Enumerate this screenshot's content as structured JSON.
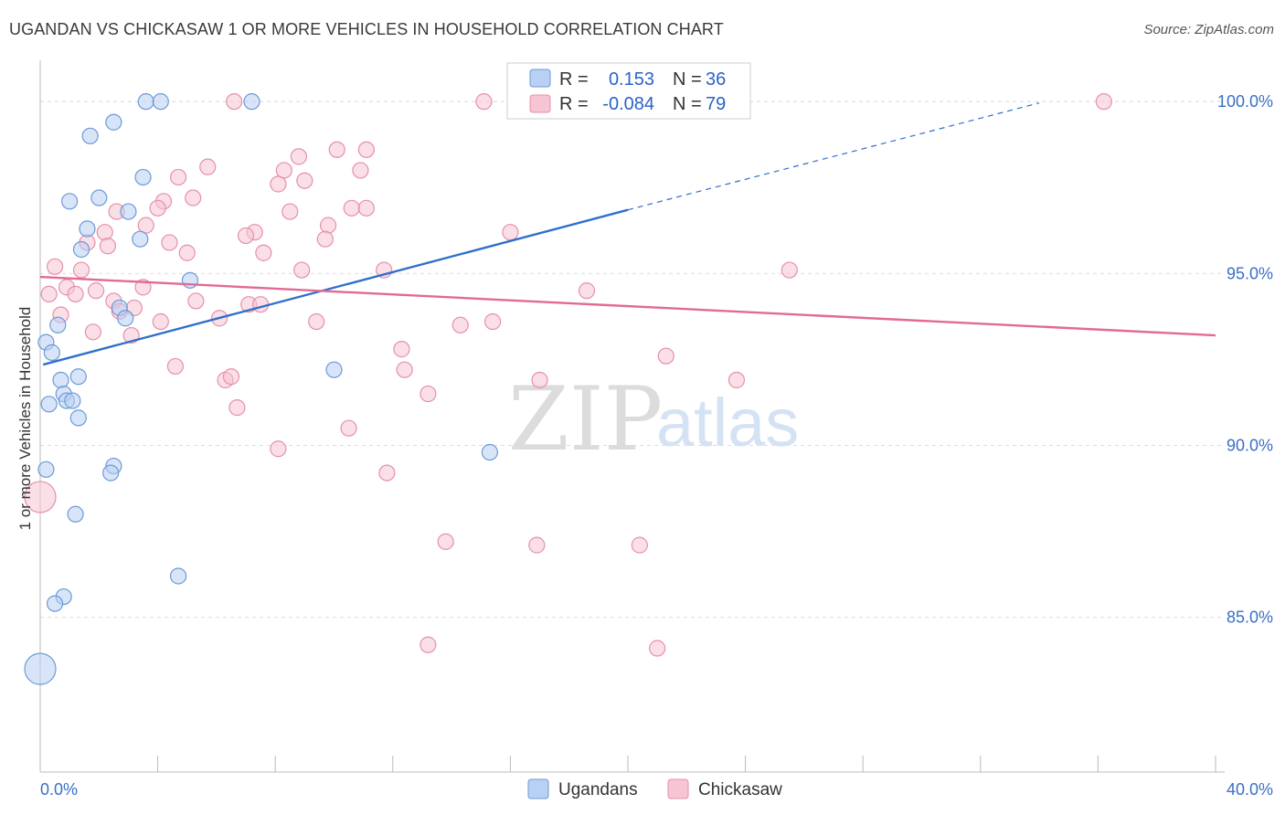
{
  "title": "UGANDAN VS CHICKASAW 1 OR MORE VEHICLES IN HOUSEHOLD CORRELATION CHART",
  "source": "Source: ZipAtlas.com",
  "watermark": {
    "zip": "ZIP",
    "atlas": "atlas"
  },
  "colors": {
    "ugandans_fill": "#b8d0f2",
    "ugandans_stroke": "#6c9ad8",
    "ugandans_line": "#2f6fcc",
    "chickasaw_fill": "#f6c4d3",
    "chickasaw_stroke": "#e590ab",
    "chickasaw_line": "#e26a93",
    "tick_label": "#3a6fc4",
    "grid": "#dddddd"
  },
  "legend": {
    "rows": [
      {
        "r_label": "R =",
        "r_value": "0.153",
        "n_label": "N =",
        "n_value": "36"
      },
      {
        "r_label": "R =",
        "r_value": "-0.084",
        "n_label": "N =",
        "n_value": "79"
      }
    ]
  },
  "chart_data": {
    "type": "scatter",
    "title": "UGANDAN VS CHICKASAW 1 OR MORE VEHICLES IN HOUSEHOLD CORRELATION CHART",
    "xlabel": "",
    "ylabel": "1 or more Vehicles in Household",
    "xlim": [
      0,
      40
    ],
    "ylim": [
      80.5,
      101.2
    ],
    "x_tick_labels": [
      "0.0%",
      "40.0%"
    ],
    "y_ticks": [
      100,
      95,
      90,
      85
    ],
    "y_tick_labels": [
      "100.0%",
      "95.0%",
      "90.0%",
      "85.0%"
    ],
    "grid": true,
    "legend_position": "bottom-center",
    "series": [
      {
        "name": "Ugandans",
        "r": 0.153,
        "n": 36,
        "trend": {
          "x0": 0.1,
          "y0": 92.35,
          "x1": 20.0,
          "y1": 96.85,
          "dashed_to_x": 34.0,
          "dashed_to_y": 99.96
        },
        "points": [
          [
            3.6,
            100
          ],
          [
            4.1,
            100
          ],
          [
            7.2,
            100
          ],
          [
            2.5,
            99.4
          ],
          [
            1.7,
            99.0
          ],
          [
            3.5,
            97.8
          ],
          [
            1.0,
            97.1
          ],
          [
            2.0,
            97.2
          ],
          [
            3.0,
            96.8
          ],
          [
            1.6,
            96.3
          ],
          [
            3.4,
            96.0
          ],
          [
            1.4,
            95.7
          ],
          [
            5.1,
            94.8
          ],
          [
            2.7,
            94.0
          ],
          [
            2.9,
            93.7
          ],
          [
            0.6,
            93.5
          ],
          [
            0.2,
            93.0
          ],
          [
            0.4,
            92.7
          ],
          [
            10.0,
            92.2
          ],
          [
            0.7,
            91.9
          ],
          [
            1.3,
            92.0
          ],
          [
            0.8,
            91.5
          ],
          [
            0.9,
            91.3
          ],
          [
            1.1,
            91.3
          ],
          [
            0.3,
            91.2
          ],
          [
            1.3,
            90.8
          ],
          [
            15.3,
            89.8
          ],
          [
            0.2,
            89.3
          ],
          [
            2.5,
            89.4
          ],
          [
            2.4,
            89.2
          ],
          [
            1.2,
            88.0
          ],
          [
            4.7,
            86.2
          ],
          [
            0.8,
            85.6
          ],
          [
            0.5,
            85.4
          ],
          [
            0.0,
            83.5
          ]
        ]
      },
      {
        "name": "Chickasaw",
        "r": -0.084,
        "n": 79,
        "trend": {
          "x0": 0.0,
          "y0": 94.9,
          "x1": 40.0,
          "y1": 93.2
        },
        "points": [
          [
            6.6,
            100
          ],
          [
            15.1,
            100
          ],
          [
            18.3,
            100
          ],
          [
            36.2,
            100
          ],
          [
            8.8,
            98.4
          ],
          [
            10.1,
            98.6
          ],
          [
            11.1,
            98.6
          ],
          [
            5.7,
            98.1
          ],
          [
            8.3,
            98.0
          ],
          [
            10.9,
            98.0
          ],
          [
            4.7,
            97.8
          ],
          [
            8.1,
            97.6
          ],
          [
            9.0,
            97.7
          ],
          [
            4.2,
            97.1
          ],
          [
            5.2,
            97.2
          ],
          [
            4.0,
            96.9
          ],
          [
            10.6,
            96.9
          ],
          [
            11.1,
            96.9
          ],
          [
            8.5,
            96.8
          ],
          [
            2.6,
            96.8
          ],
          [
            3.6,
            96.4
          ],
          [
            9.8,
            96.4
          ],
          [
            2.2,
            96.2
          ],
          [
            7.3,
            96.2
          ],
          [
            16.0,
            96.2
          ],
          [
            7.0,
            96.1
          ],
          [
            9.7,
            96.0
          ],
          [
            4.4,
            95.9
          ],
          [
            1.6,
            95.9
          ],
          [
            2.3,
            95.8
          ],
          [
            5.0,
            95.6
          ],
          [
            7.6,
            95.6
          ],
          [
            0.5,
            95.2
          ],
          [
            1.4,
            95.1
          ],
          [
            8.9,
            95.1
          ],
          [
            11.7,
            95.1
          ],
          [
            25.5,
            95.1
          ],
          [
            0.9,
            94.6
          ],
          [
            3.5,
            94.6
          ],
          [
            18.6,
            94.5
          ],
          [
            1.2,
            94.4
          ],
          [
            1.9,
            94.5
          ],
          [
            0.3,
            94.4
          ],
          [
            2.5,
            94.2
          ],
          [
            5.3,
            94.2
          ],
          [
            7.1,
            94.1
          ],
          [
            7.5,
            94.1
          ],
          [
            3.2,
            94.0
          ],
          [
            2.7,
            93.9
          ],
          [
            0.7,
            93.8
          ],
          [
            6.1,
            93.7
          ],
          [
            9.4,
            93.6
          ],
          [
            4.1,
            93.6
          ],
          [
            15.4,
            93.6
          ],
          [
            14.3,
            93.5
          ],
          [
            1.8,
            93.3
          ],
          [
            3.1,
            93.2
          ],
          [
            12.3,
            92.8
          ],
          [
            21.3,
            92.6
          ],
          [
            4.6,
            92.3
          ],
          [
            12.4,
            92.2
          ],
          [
            6.3,
            91.9
          ],
          [
            6.5,
            92.0
          ],
          [
            17.0,
            91.9
          ],
          [
            23.7,
            91.9
          ],
          [
            13.2,
            91.5
          ],
          [
            6.7,
            91.1
          ],
          [
            10.5,
            90.5
          ],
          [
            8.1,
            89.9
          ],
          [
            11.8,
            89.2
          ],
          [
            0.0,
            88.5
          ],
          [
            13.8,
            87.2
          ],
          [
            16.9,
            87.1
          ],
          [
            20.4,
            87.1
          ],
          [
            13.2,
            84.2
          ],
          [
            21.0,
            84.1
          ],
          [
            17.6,
            100.0
          ]
        ]
      }
    ]
  },
  "bottom_legend": {
    "items": [
      "Ugandans",
      "Chickasaw"
    ]
  }
}
